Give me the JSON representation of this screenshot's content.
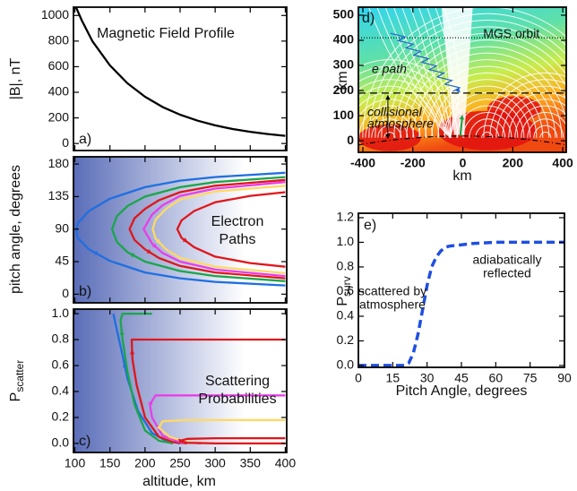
{
  "chart_data": [
    {
      "type": "line",
      "label": "a)",
      "title": "Magnetic Field Profile",
      "ylabel": "|B|, nT",
      "xlim": [
        98,
        402
      ],
      "xticks": [
        100,
        150,
        200,
        250,
        300,
        350,
        400
      ],
      "xticklabels": false,
      "ylim": [
        -55,
        1065
      ],
      "yticks": [
        0,
        200,
        400,
        600,
        800,
        1000
      ],
      "series": [
        {
          "color": "#000000",
          "x": [
            102,
            110,
            125,
            150,
            175,
            200,
            225,
            250,
            275,
            300,
            325,
            350,
            375,
            400
          ],
          "values": [
            1060,
            960,
            800,
            610,
            470,
            365,
            285,
            225,
            178,
            142,
            113,
            91,
            74,
            60
          ]
        }
      ]
    },
    {
      "type": "line",
      "label": "b)",
      "title": [
        "Electron",
        "Paths"
      ],
      "ylabel": "pitch angle, degrees",
      "shade": "#5a6db8",
      "arrows": true,
      "xlim": [
        98,
        402
      ],
      "xticks": [
        100,
        150,
        200,
        250,
        300,
        350,
        400
      ],
      "xticklabels": false,
      "ylim": [
        -12,
        190
      ],
      "yticks": [
        0,
        45,
        90,
        135,
        180
      ],
      "series": [
        {
          "color": "#1f6fe0",
          "x": [
            400,
            300,
            250,
            200,
            150,
            120,
            104,
            102,
            104,
            120,
            150,
            200,
            250,
            300,
            400
          ],
          "values": [
            168,
            162,
            157,
            148,
            132,
            115,
            98,
            88,
            78,
            62,
            46,
            30,
            22,
            17,
            12
          ]
        },
        {
          "color": "#1aa64a",
          "x": [
            400,
            300,
            250,
            200,
            175,
            160,
            153,
            160,
            175,
            200,
            250,
            300,
            400
          ],
          "values": [
            162,
            155,
            148,
            135,
            122,
            108,
            90,
            72,
            58,
            45,
            32,
            25,
            18
          ]
        },
        {
          "color": "#e0161b",
          "x": [
            400,
            300,
            250,
            220,
            200,
            185,
            178,
            185,
            200,
            220,
            250,
            300,
            400
          ],
          "values": [
            158,
            150,
            141,
            130,
            118,
            105,
            90,
            75,
            62,
            50,
            39,
            30,
            22
          ]
        },
        {
          "color": "#e83ee8",
          "x": [
            400,
            300,
            250,
            225,
            210,
            198,
            210,
            225,
            250,
            300,
            400
          ],
          "values": [
            155,
            146,
            136,
            123,
            110,
            90,
            70,
            57,
            45,
            34,
            25
          ]
        },
        {
          "color": "#ffd966",
          "x": [
            400,
            300,
            250,
            230,
            215,
            211,
            215,
            230,
            250,
            300,
            400
          ],
          "values": [
            150,
            142,
            131,
            118,
            103,
            90,
            77,
            62,
            50,
            38,
            29
          ]
        },
        {
          "color": "#e0161b",
          "x": [
            400,
            350,
            300,
            270,
            252,
            246,
            252,
            270,
            300,
            350,
            400
          ],
          "values": [
            141,
            136,
            127,
            115,
            102,
            90,
            78,
            65,
            52,
            43,
            38
          ]
        }
      ]
    },
    {
      "type": "line",
      "label": "c)",
      "title": [
        "Scattering",
        "Probabilities"
      ],
      "ylabel": {
        "text": "P",
        "sub": "scatter"
      },
      "xlabel": "altitude, km",
      "shade": "#5a6db8",
      "arrows": true,
      "xlim": [
        98,
        402
      ],
      "xticks": [
        100,
        150,
        200,
        250,
        300,
        350,
        400
      ],
      "ylim": [
        -0.07,
        1.035
      ],
      "yticks": [
        {
          "value": 0,
          "label": "0.0"
        },
        {
          "value": 0.2,
          "label": "0.2"
        },
        {
          "value": 0.4,
          "label": "0.4"
        },
        {
          "value": 0.6,
          "label": "0.6"
        },
        {
          "value": 0.8,
          "label": "0.8"
        },
        {
          "value": 1,
          "label": "1.0"
        }
      ],
      "series": [
        {
          "color": "#1f6fe0",
          "x": [
            250,
            230,
            210,
            190,
            175,
            165,
            158,
            155
          ],
          "values": [
            0,
            0.02,
            0.08,
            0.25,
            0.5,
            0.75,
            0.92,
            1
          ]
        },
        {
          "color": "#1aa64a",
          "x": [
            240,
            220,
            200,
            185,
            175,
            168,
            165,
            168,
            210
          ],
          "values": [
            0,
            0.02,
            0.1,
            0.3,
            0.55,
            0.8,
            0.95,
            1,
            1
          ]
        },
        {
          "color": "#e0161b",
          "x": [
            260,
            240,
            220,
            200,
            188,
            182,
            181,
            190,
            400
          ],
          "values": [
            0,
            0.01,
            0.05,
            0.2,
            0.45,
            0.65,
            0.8,
            0.8,
            0.8
          ]
        },
        {
          "color": "#e83ee8",
          "x": [
            280,
            250,
            225,
            210,
            207,
            215,
            250,
            400
          ],
          "values": [
            0,
            0.01,
            0.06,
            0.2,
            0.3,
            0.37,
            0.37,
            0.37
          ]
        },
        {
          "color": "#ffd966",
          "x": [
            300,
            260,
            235,
            220,
            225,
            260,
            400
          ],
          "values": [
            0,
            0.01,
            0.05,
            0.12,
            0.17,
            0.18,
            0.18
          ]
        },
        {
          "color": "#e0161b",
          "x": [
            400,
            300,
            260,
            250,
            260,
            300,
            400
          ],
          "values": [
            0,
            0,
            0.005,
            0.02,
            0.035,
            0.04,
            0.04
          ]
        }
      ]
    },
    {
      "type": "field",
      "label": "d)",
      "xlabel": "km",
      "ylabel": "km",
      "xlim": [
        -418,
        414
      ],
      "xticks": [
        -400,
        -200,
        0,
        200,
        400
      ],
      "ylim": [
        -46,
        532
      ],
      "yticks": [
        0,
        100,
        200,
        300,
        400,
        500
      ],
      "orbit": {
        "y": 410,
        "label": "MGS orbit"
      },
      "atmosphere": {
        "y": 190,
        "label": [
          "collisional",
          "atmosphere"
        ]
      },
      "path_label": "e path"
    },
    {
      "type": "line",
      "label": "e)",
      "dashed": true,
      "ylabel": {
        "text": "P",
        "sub": "surv"
      },
      "xlabel": "Pitch Angle, degrees",
      "xlim": [
        0,
        90
      ],
      "xticks": [
        0,
        15,
        30,
        45,
        60,
        75,
        90
      ],
      "ylim": [
        -0.015,
        1.236
      ],
      "yticks": [
        {
          "value": 0,
          "label": "0.0"
        },
        {
          "value": 0.2,
          "label": "0.2"
        },
        {
          "value": 0.4,
          "label": "0.4"
        },
        {
          "value": 0.6,
          "label": "0.6"
        },
        {
          "value": 0.8,
          "label": "0.8"
        },
        {
          "value": 1,
          "label": "1.0"
        },
        {
          "value": 1.2,
          "label": "1.2"
        }
      ],
      "annotations": [
        {
          "text": [
            "scattered by",
            "atmosphere"
          ],
          "color": "#2257d8"
        },
        {
          "text": [
            "adiabatically",
            "reflected"
          ],
          "color": "#2257d8"
        }
      ],
      "series": [
        {
          "color": "#1f4fe0",
          "x": [
            0,
            10,
            20,
            22,
            24,
            26,
            28,
            30,
            32,
            34,
            36,
            38,
            40,
            45,
            50,
            60,
            70,
            80,
            90
          ],
          "values": [
            0,
            0,
            0,
            0.02,
            0.1,
            0.25,
            0.45,
            0.65,
            0.8,
            0.88,
            0.93,
            0.96,
            0.97,
            0.98,
            0.99,
            1,
            1,
            1,
            1
          ]
        }
      ]
    }
  ]
}
